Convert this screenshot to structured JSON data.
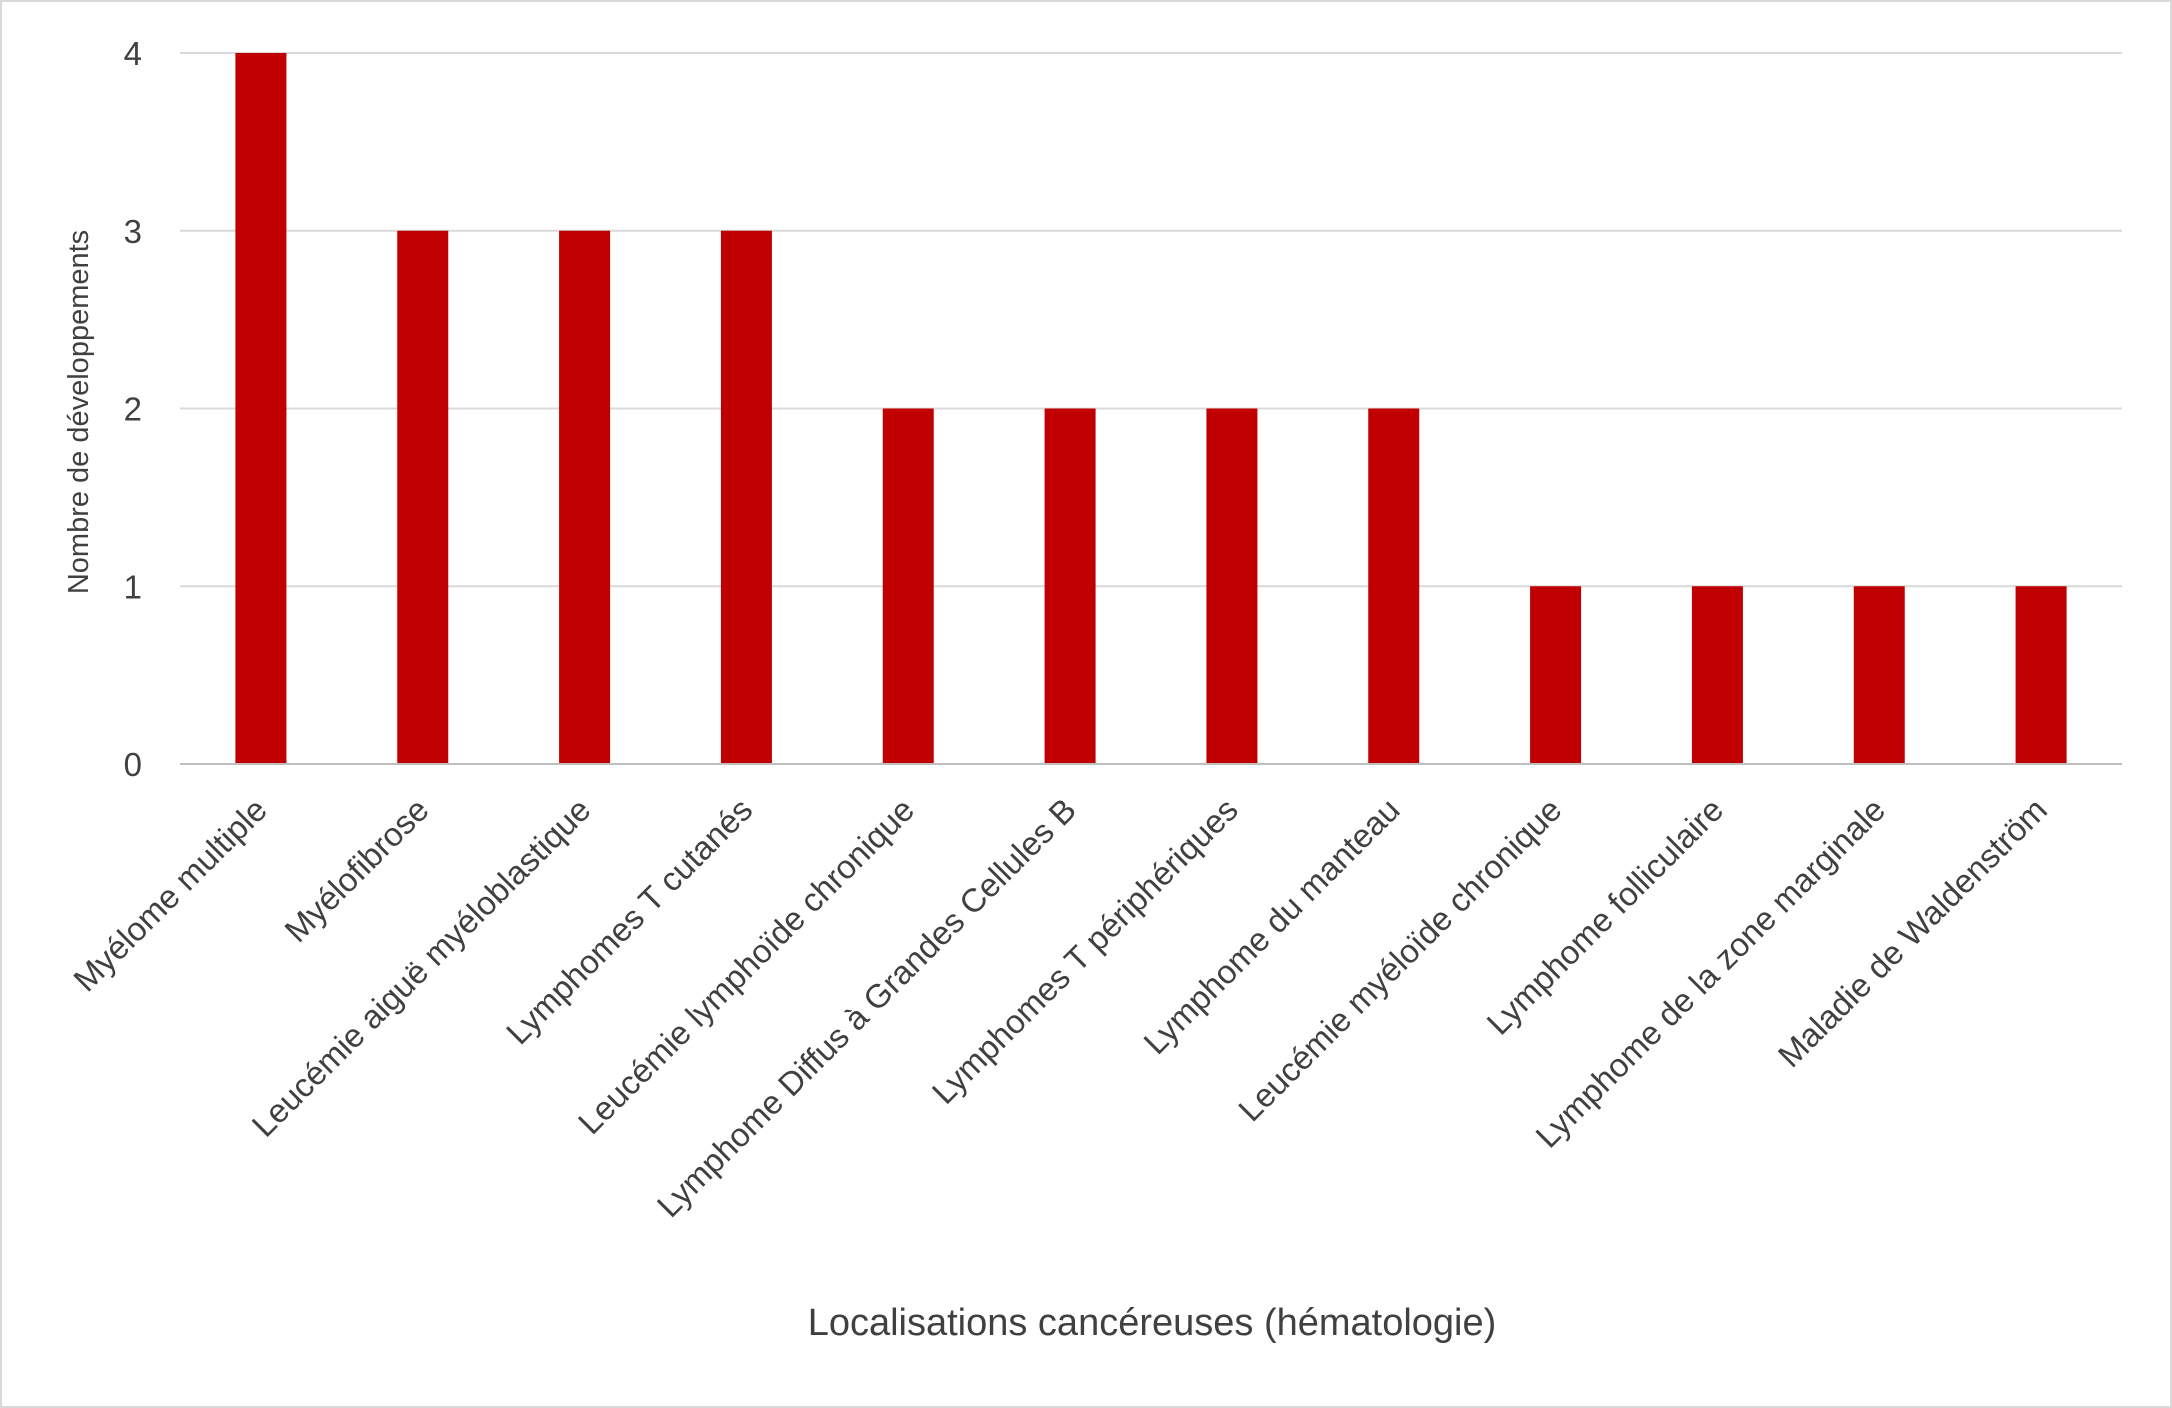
{
  "chart_data": {
    "type": "bar",
    "title": "",
    "xlabel": "Localisations cancéreuses (hématologie)",
    "ylabel": "Nombre de développements",
    "categories": [
      "Myélome multiple",
      "Myélofibrose",
      "Leucémie aiguë myéloblastique",
      "Lymphomes T cutanés",
      "Leucémie lymphoïde chronique",
      "Lymphome Diffus à Grandes Cellules B",
      "Lymphomes T périphériques",
      "Lymphome du manteau",
      "Leucémie myéloïde chronique",
      "Lymphome folliculaire",
      "Lymphome de la zone marginale",
      "Maladie de Waldenström"
    ],
    "values": [
      4,
      3,
      3,
      3,
      2,
      2,
      2,
      2,
      1,
      1,
      1,
      1
    ],
    "ylim": [
      0,
      4
    ],
    "yticks": [
      0,
      1,
      2,
      3,
      4
    ],
    "grid": true,
    "legend": "none",
    "bar_color": "#C00000",
    "grid_color": "#D9D9D9",
    "axis_color": "#BFBFBF",
    "text_color": "#404040"
  }
}
